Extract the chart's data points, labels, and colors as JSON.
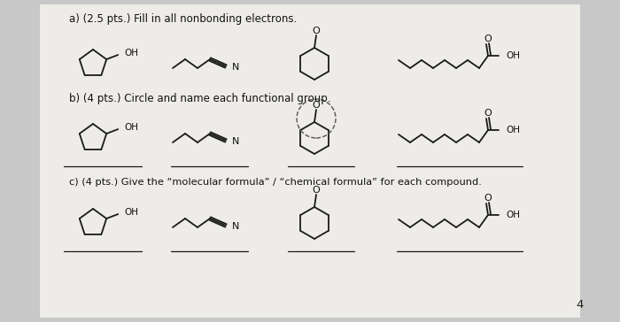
{
  "background_color": "#c8c8c8",
  "paper_color": "#eeece8",
  "title_a": "a) (2.5 pts.) Fill in all nonbonding electrons.",
  "title_b": "b) (4 pts.) Circle and name each functional group.",
  "title_c": "c) (4 pts.) Give the “molecular formula” / “chemical formula” for each compound.",
  "page_num": "4",
  "line_color": "#1a1a1a",
  "text_color": "#111111",
  "font_size_label": 8.5,
  "font_size_atom": 7.5
}
